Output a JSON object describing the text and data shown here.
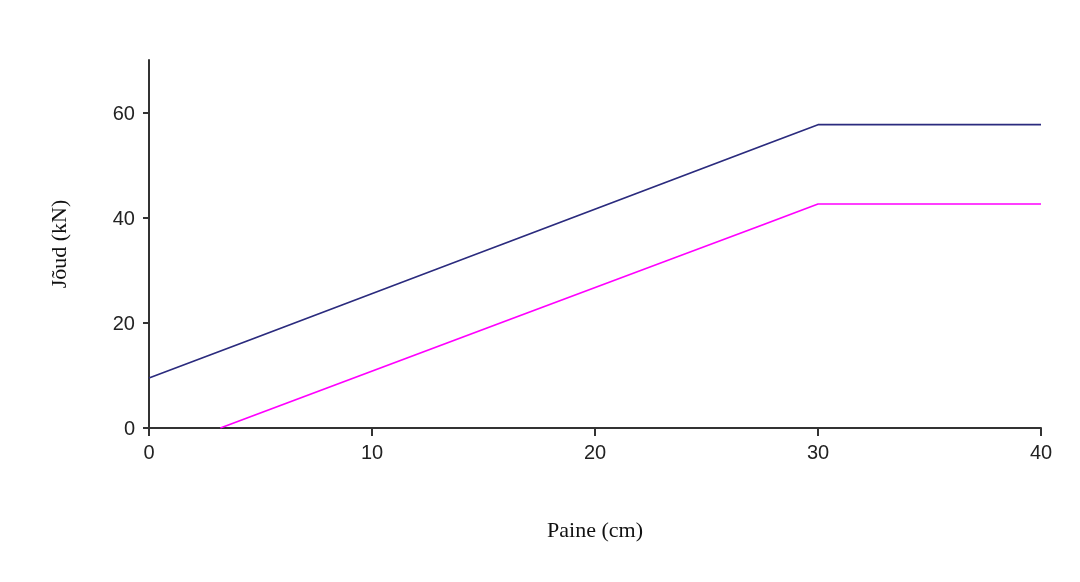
{
  "chart_data": {
    "type": "line",
    "xlabel": "Paine (cm)",
    "ylabel": "Jõud (kN)",
    "xlim": [
      0,
      40
    ],
    "xticks": [
      0,
      10,
      20,
      30,
      40
    ],
    "ylim": [
      0,
      70
    ],
    "yticks": [
      0,
      20,
      40,
      60
    ],
    "marker": "none",
    "line_style": "solid",
    "series": [
      {
        "color": "#2b2b7e",
        "x": [
          0,
          30,
          40
        ],
        "values": [
          9.5,
          57.7,
          57.7
        ]
      },
      {
        "color": "#ff00ff",
        "x": [
          3.2,
          30,
          40
        ],
        "values": [
          0,
          42.6,
          42.6
        ]
      }
    ]
  }
}
